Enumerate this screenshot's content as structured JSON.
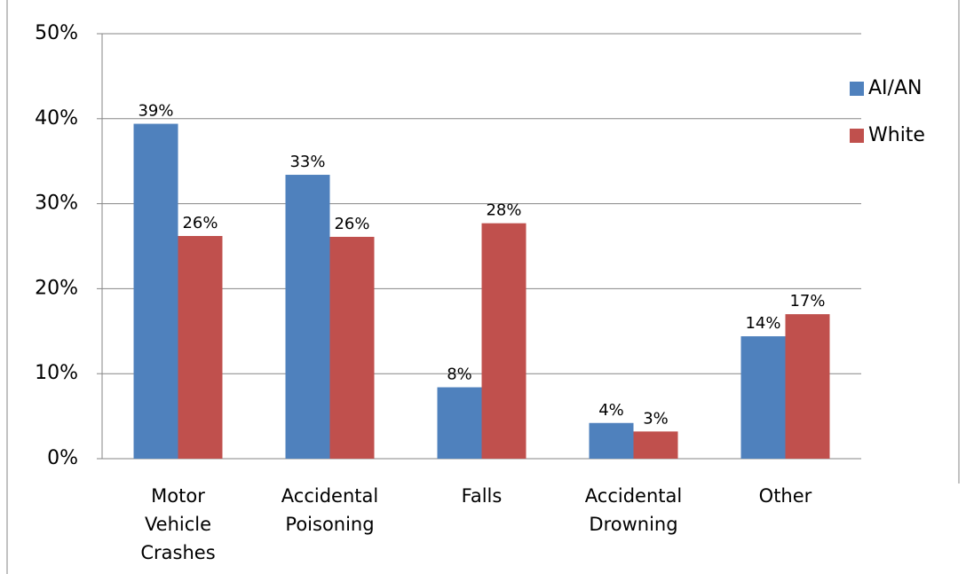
{
  "chart_data": {
    "type": "bar",
    "categories": [
      "Motor Vehicle Crashes",
      "Accidental Poisoning",
      "Falls",
      "Accidental Drowning",
      "Other"
    ],
    "series": [
      {
        "name": "AI/AN",
        "color": "#4f81bd",
        "values": [
          39.4,
          33.4,
          8.4,
          4.2,
          14.4
        ],
        "value_labels": [
          "39%",
          "33%",
          "8%",
          "4%",
          "14%"
        ]
      },
      {
        "name": "White",
        "color": "#c0504d",
        "values": [
          26.2,
          26.1,
          27.7,
          3.2,
          17.0
        ],
        "value_labels": [
          "26%",
          "26%",
          "28%",
          "3%",
          "17%"
        ]
      }
    ],
    "ylim": [
      0,
      50
    ],
    "yticks": [
      {
        "value": 0,
        "label": "0%"
      },
      {
        "value": 10,
        "label": "10%"
      },
      {
        "value": 20,
        "label": "20%"
      },
      {
        "value": 30,
        "label": "30%"
      },
      {
        "value": 40,
        "label": "40%"
      },
      {
        "value": 50,
        "label": "50%"
      }
    ],
    "grid": true,
    "legend": "right"
  }
}
